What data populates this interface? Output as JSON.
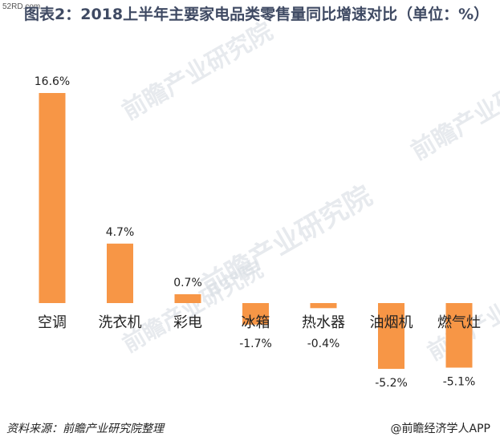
{
  "site_tag": "52RD.com",
  "source_note": "资料来源：前瞻产业研究院整理",
  "credit": "@前瞻经济学人APP",
  "watermark": "前瞻产业研究院",
  "bar_color": "#f79646",
  "chart_data": {
    "type": "bar",
    "title": "图表2：2018上半年主要家电品类零售量同比增速对比（单位：%）",
    "categories": [
      "空调",
      "洗衣机",
      "彩电",
      "冰箱",
      "热水器",
      "油烟机",
      "燃气灶"
    ],
    "values": [
      16.6,
      4.7,
      0.7,
      -1.7,
      -0.4,
      -5.2,
      -5.1
    ],
    "data_labels": [
      "16.6%",
      "4.7%",
      "0.7%",
      "-1.7%",
      "-0.4%",
      "-5.2%",
      "-5.1%"
    ],
    "ylim": [
      -5.5,
      17
    ],
    "grid": false,
    "legend": "none"
  }
}
